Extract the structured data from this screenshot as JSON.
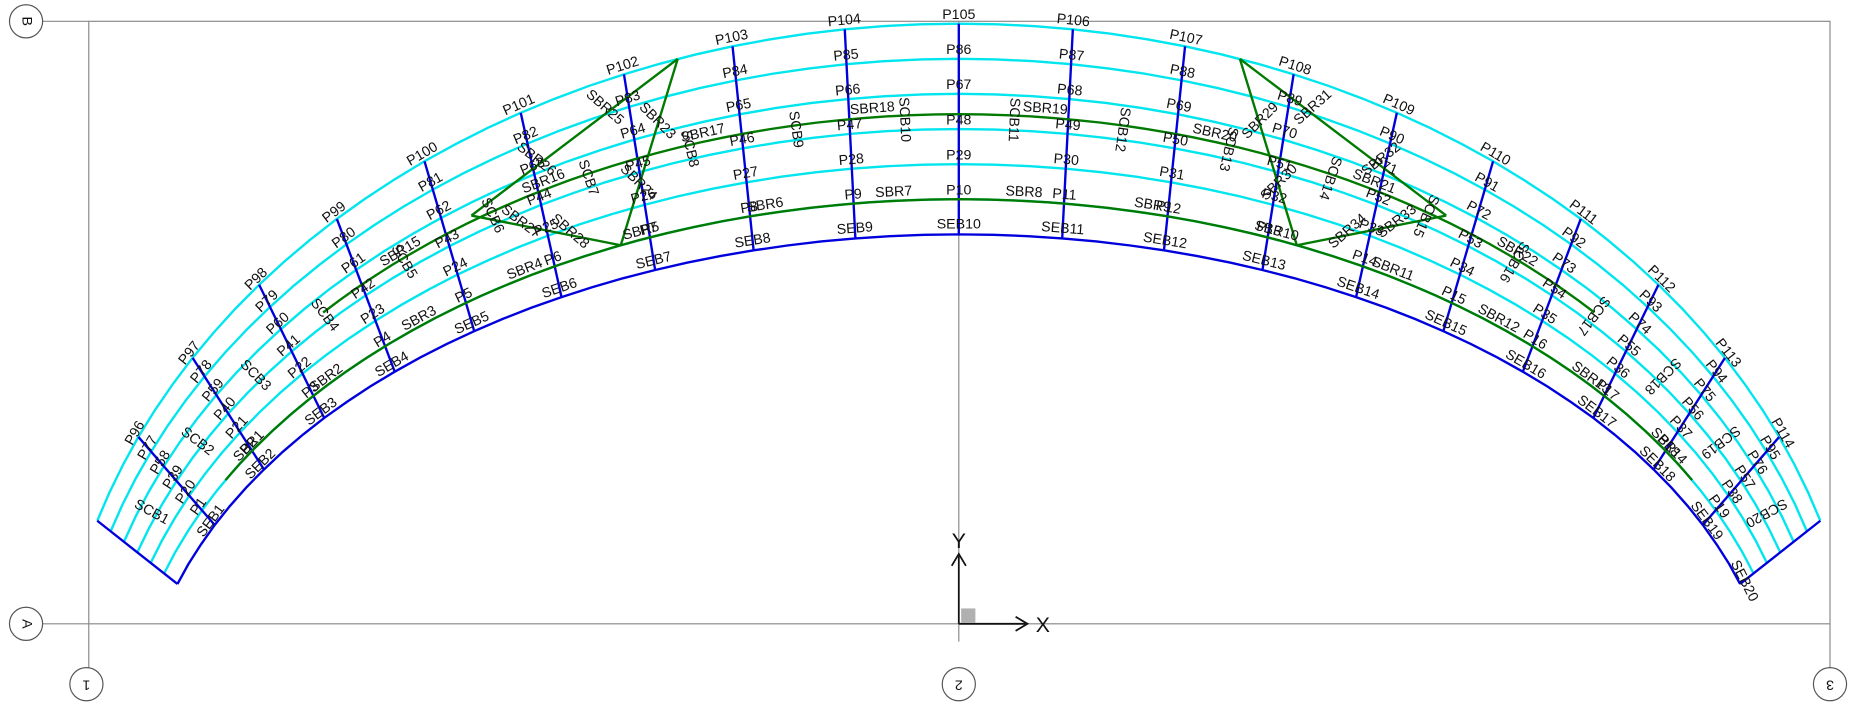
{
  "grid": {
    "rows": [
      "A",
      "B"
    ],
    "columns": [
      "1",
      "2",
      "3"
    ]
  },
  "axes": {
    "x": "X",
    "y": "Y"
  },
  "frames": {
    "layers": [
      [
        "P1",
        "P2",
        "P3",
        "P4",
        "P5",
        "P6",
        "P7",
        "P8",
        "P9",
        "P10",
        "P11",
        "P12",
        "P13",
        "P14",
        "P15",
        "P16",
        "P17",
        "P18",
        "P19"
      ],
      [
        "P20",
        "P21",
        "P22",
        "P23",
        "P24",
        "P25",
        "P26",
        "P27",
        "P28",
        "P29",
        "P30",
        "P31",
        "P32",
        "P33",
        "P34",
        "P35",
        "P36",
        "P37",
        "P38"
      ],
      [
        "P39",
        "P40",
        "P41",
        "P42",
        "P43",
        "P44",
        "P45",
        "P46",
        "P47",
        "P48",
        "P49",
        "P50",
        "P51",
        "P52",
        "P53",
        "P54",
        "P55",
        "P56",
        "P57"
      ],
      [
        "P58",
        "P59",
        "P60",
        "P61",
        "P62",
        "P63",
        "P64",
        "P65",
        "P66",
        "P67",
        "P68",
        "P69",
        "P70",
        "P71",
        "P72",
        "P73",
        "P74",
        "P75",
        "P76"
      ],
      [
        "P77",
        "P78",
        "P79",
        "P80",
        "P81",
        "P82",
        "P83",
        "P84",
        "P85",
        "P86",
        "P87",
        "P88",
        "P89",
        "P90",
        "P91",
        "P92",
        "P93",
        "P94",
        "P95"
      ],
      [
        "P96",
        "P97",
        "P98",
        "P99",
        "P100",
        "P101",
        "P102",
        "P103",
        "P104",
        "P105",
        "P106",
        "P107",
        "P108",
        "P109",
        "P110",
        "P111",
        "P112",
        "P113",
        "P114"
      ]
    ],
    "edge_beams": [
      "SEB1",
      "SEB2",
      "SEB3",
      "SEB4",
      "SEB5",
      "SEB6",
      "SEB7",
      "SEB8",
      "SEB9",
      "SEB10",
      "SEB11",
      "SEB12",
      "SEB13",
      "SEB14",
      "SEB15",
      "SEB16",
      "SEB17",
      "SEB18",
      "SEB19",
      "SEB20"
    ],
    "radial_beams": [
      "SCB1",
      "SCB2",
      "SCB3",
      "SCB4",
      "SCB5",
      "SCB6",
      "SCB7",
      "SCB8",
      "SCB9",
      "SCB10",
      "SCB11",
      "SCB12",
      "SCB13",
      "SCB14",
      "SCB15",
      "SCB16",
      "SCB17",
      "SCB18",
      "SCB19",
      "SCB20"
    ],
    "braces": [
      "SBR1",
      "SBR2",
      "SBR3",
      "SBR4",
      "SBR5",
      "SBR6",
      "SBR7",
      "SBR8",
      "SBR9",
      "SBR10",
      "SBR11",
      "SBR12",
      "SBR13",
      "SBR14",
      "SBR15",
      "SBR16",
      "SBR17",
      "SBR18",
      "SBR19",
      "SBR20",
      "SBR21",
      "SBR22",
      "SBR23",
      "SBR24",
      "SBR25",
      "SBR26",
      "SBR27",
      "SBR28",
      "SBR29",
      "SBR30",
      "SBR31",
      "SBR32",
      "SBR33",
      "SBR34"
    ]
  }
}
